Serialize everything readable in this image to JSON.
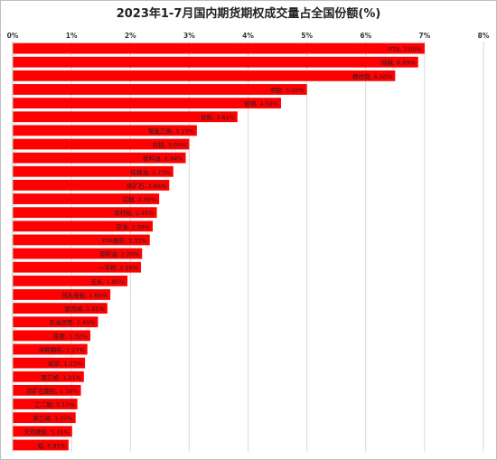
{
  "chart_data": {
    "type": "bar",
    "orientation": "horizontal",
    "title": "2023年1-7月国内期货期权成交量占全国份额(%)",
    "xlabel": "",
    "ylabel": "",
    "xlim": [
      0,
      8
    ],
    "x_ticks": [
      "0%",
      "1%",
      "2%",
      "3%",
      "4%",
      "5%",
      "6%",
      "7%",
      "8%"
    ],
    "grid": true,
    "legend": "none",
    "bar_color": "#ff0000",
    "categories": [
      "PTA",
      "纯碱",
      "螺纹钢",
      "甲醇",
      "玻璃",
      "豆粕",
      "聚氯乙烯",
      "白银",
      "燃料油",
      "棕榈油",
      "铁矿石",
      "白糖",
      "菜籽粕",
      "豆油",
      "PTA期权",
      "菜籽油",
      "一号棉",
      "玉米",
      "热轧卷板",
      "聚丙烯",
      "石油沥青",
      "尿素",
      "甲醇期权",
      "纸浆",
      "聚乙烯",
      "铁矿石期权",
      "乙二醇",
      "苯乙烯",
      "天然橡胶",
      "锰"
    ],
    "values": [
      7.0,
      6.89,
      6.5,
      5.0,
      4.56,
      3.82,
      3.13,
      3.0,
      2.94,
      2.73,
      2.66,
      2.49,
      2.45,
      2.38,
      2.33,
      2.2,
      2.18,
      1.95,
      1.66,
      1.61,
      1.45,
      1.32,
      1.27,
      1.23,
      1.21,
      1.16,
      1.1,
      1.07,
      1.01,
      0.95
    ],
    "data_labels": [
      "PTA, 7.00%",
      "纯碱, 6.89%",
      "螺纹钢, 6.50%",
      "甲醇, 5.00%",
      "玻璃, 4.56%",
      "豆粕, 3.82%",
      "聚氯乙烯, 3.13%",
      "白银, 3.00%",
      "燃料油, 2.94%",
      "棕榈油, 2.73%",
      "铁矿石, 2.66%",
      "白糖, 2.49%",
      "菜籽粕, 2.45%",
      "豆油, 2.38%",
      "PTA期权, 2.33%",
      "菜籽油, 2.20%",
      "一号棉, 2.18%",
      "玉米, 1.95%",
      "热轧卷板, 1.66%",
      "聚丙烯, 1.61%",
      "石油沥青, 1.45%",
      "尿素, 1.32%",
      "甲醇期权, 1.27%",
      "纸浆, 1.23%",
      "聚乙烯, 1.21%",
      "铁矿石期权, 1.16%",
      "乙二醇, 1.10%",
      "苯乙烯, 1.07%",
      "天然橡胶, 1.01%",
      "锰, 0.95%"
    ]
  }
}
